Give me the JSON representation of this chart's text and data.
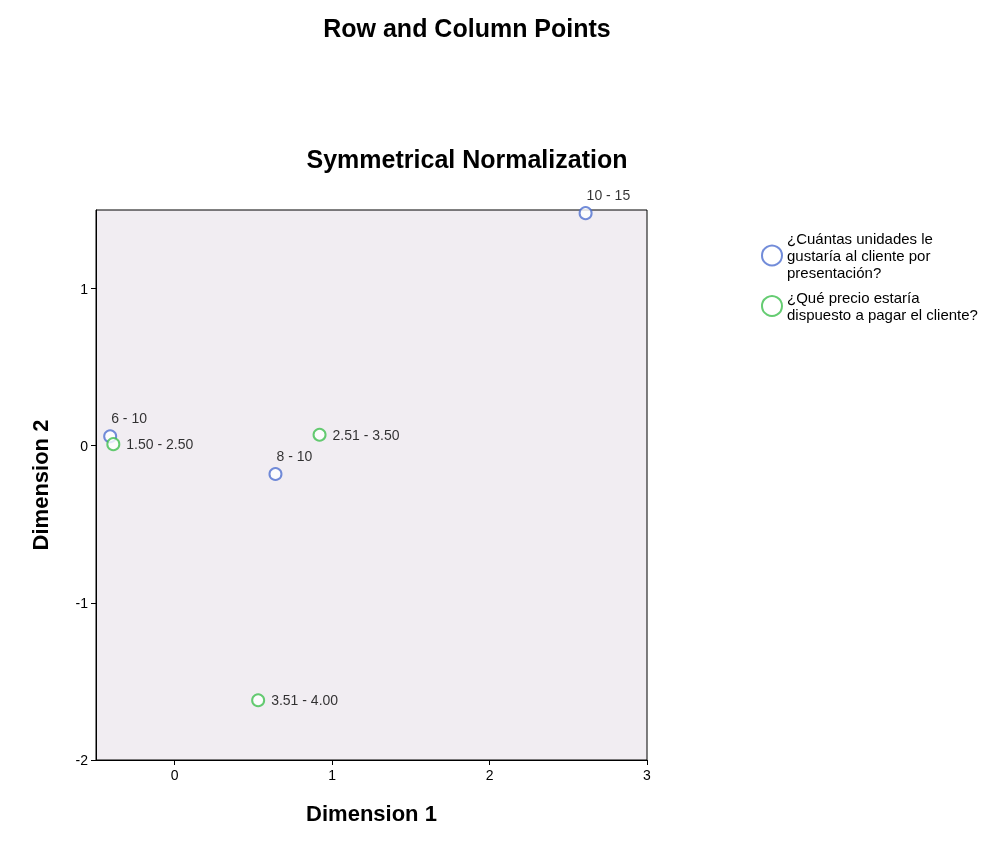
{
  "chart_data": {
    "type": "scatter",
    "title": "Row and Column Points",
    "subtitle": "Symmetrical Normalization",
    "xlabel": "Dimension 1",
    "ylabel": "Dimension 2",
    "series": [
      {
        "name": "¿Cuántas unidades le gustaría al cliente por presentación?",
        "color": "#4f6fcf",
        "x": [
          -0.41,
          0.64,
          2.61
        ],
        "values": [
          0.06,
          -0.18,
          1.48
        ],
        "value_labels": [
          "6 - 10",
          "8 - 10",
          "10 - 15"
        ]
      },
      {
        "name": "¿Qué precio estaría dispuesto a pagar el cliente?",
        "color": "#3fbf4f",
        "x": [
          -0.39,
          0.92,
          0.53
        ],
        "values": [
          0.01,
          0.07,
          -1.62
        ],
        "value_labels": [
          "1.50 - 2.50",
          "2.51 - 3.50",
          "3.51 - 4.00"
        ]
      }
    ],
    "xlim": [
      -0.5,
      3
    ],
    "xticks": [
      0,
      1,
      2,
      3
    ],
    "ylim": [
      -2,
      1.5
    ],
    "yticks": [
      -2,
      -1,
      0,
      1
    ],
    "marker": "circle",
    "grid": false,
    "legend": "right"
  }
}
